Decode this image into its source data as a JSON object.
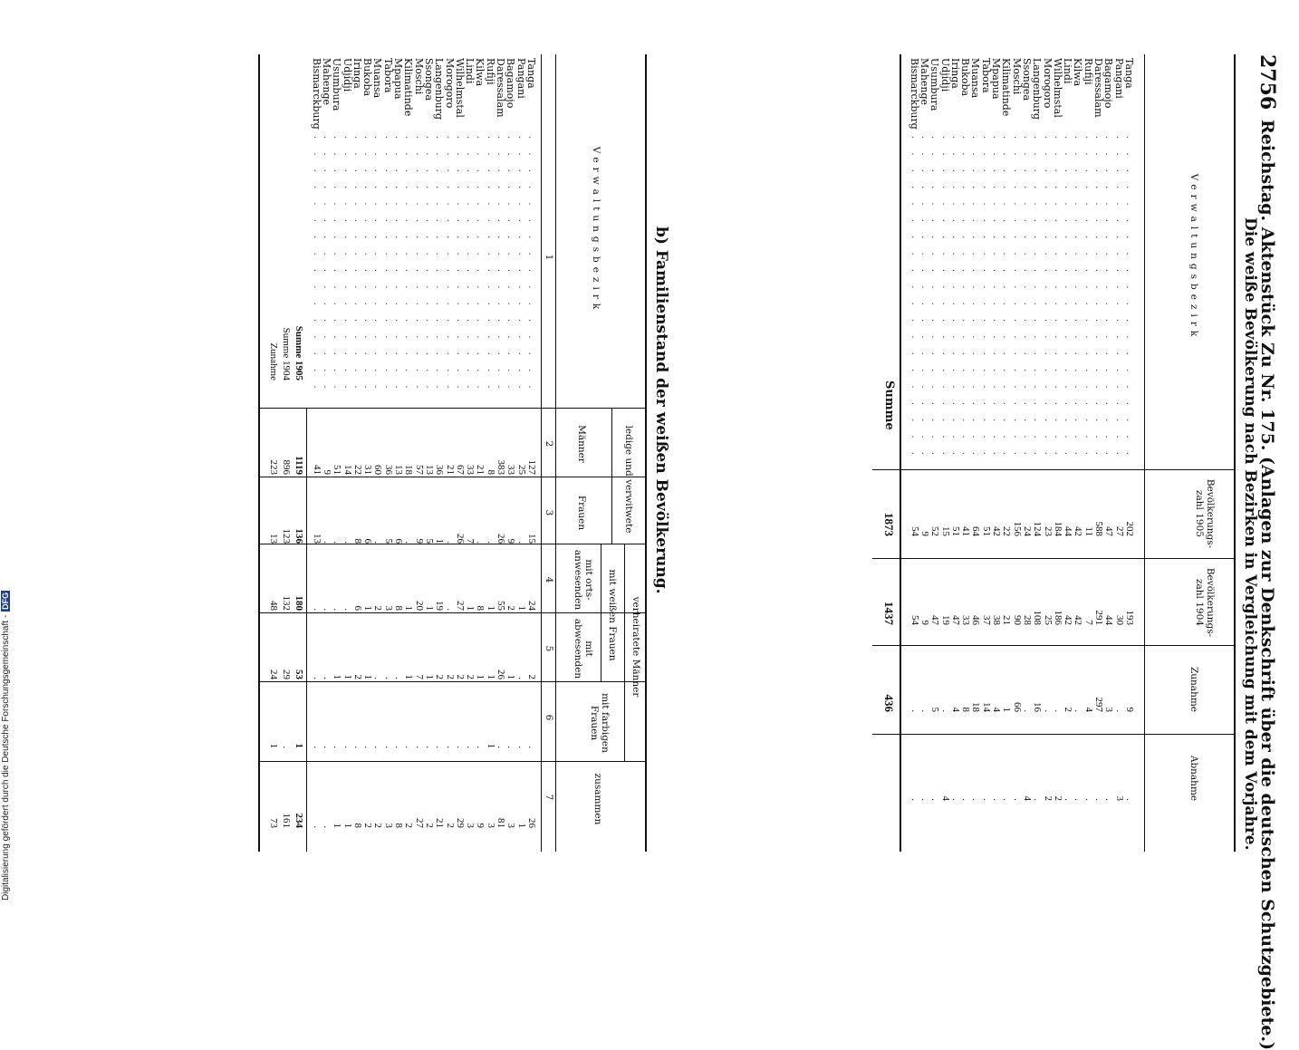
{
  "page_header": {
    "page_number": "2756",
    "running_title": "Reichstag. Aktenstück Zu Nr. 175. (Anlagen zur Denkschrift über die deutschen Schutzgebiete.)"
  },
  "table_a": {
    "title": "Die weiße Bevölkerung nach Bezirken in Vergleichung mit dem Vorjahre.",
    "columns": {
      "district": "Verwaltungsbezirk",
      "pop_1905": "Bevölkerungs- zahl 1905",
      "pop_1904": "Bevölkerungs- zahl 1904",
      "increase": "Zunahme",
      "decrease": "Abnahme"
    },
    "rows": [
      {
        "district": "Tanga",
        "pop_1905": "202",
        "pop_1904": "193",
        "increase": "9",
        "decrease": "."
      },
      {
        "district": "Pangani",
        "pop_1905": "27",
        "pop_1904": "30",
        "increase": ".",
        "decrease": "3"
      },
      {
        "district": "Bagamojo",
        "pop_1905": "47",
        "pop_1904": "44",
        "increase": "3",
        "decrease": "."
      },
      {
        "district": "Daressalam",
        "pop_1905": "588",
        "pop_1904": "291",
        "increase": "297",
        "decrease": "."
      },
      {
        "district": "Rufiji",
        "pop_1905": "11",
        "pop_1904": "7",
        "increase": "4",
        "decrease": "."
      },
      {
        "district": "Kilwa",
        "pop_1905": "42",
        "pop_1904": "42",
        "increase": ".",
        "decrease": "."
      },
      {
        "district": "Lindi",
        "pop_1905": "44",
        "pop_1904": "42",
        "increase": "2",
        "decrease": "."
      },
      {
        "district": "Wilhelmstal",
        "pop_1905": "184",
        "pop_1904": "186",
        "increase": ".",
        "decrease": "2"
      },
      {
        "district": "Morogoro",
        "pop_1905": "23",
        "pop_1904": "25",
        "increase": ".",
        "decrease": "2"
      },
      {
        "district": "Langenburg",
        "pop_1905": "124",
        "pop_1904": "108",
        "increase": "16",
        "decrease": "."
      },
      {
        "district": "Ssongea",
        "pop_1905": "24",
        "pop_1904": "28",
        "increase": ".",
        "decrease": "4"
      },
      {
        "district": "Moschi",
        "pop_1905": "156",
        "pop_1904": "90",
        "increase": "66",
        "decrease": "."
      },
      {
        "district": "Kilimatinde",
        "pop_1905": "22",
        "pop_1904": "21",
        "increase": "1",
        "decrease": "."
      },
      {
        "district": "Mpapua",
        "pop_1905": "42",
        "pop_1904": "38",
        "increase": "4",
        "decrease": "."
      },
      {
        "district": "Tabora",
        "pop_1905": "51",
        "pop_1904": "37",
        "increase": "14",
        "decrease": "."
      },
      {
        "district": "Muansa",
        "pop_1905": "64",
        "pop_1904": "46",
        "increase": "18",
        "decrease": "."
      },
      {
        "district": "Bukoba",
        "pop_1905": "41",
        "pop_1904": "33",
        "increase": "8",
        "decrease": "."
      },
      {
        "district": "Iringa",
        "pop_1905": "51",
        "pop_1904": "47",
        "increase": "4",
        "decrease": "."
      },
      {
        "district": "Udjidji",
        "pop_1905": "15",
        "pop_1904": "19",
        "increase": ".",
        "decrease": "4"
      },
      {
        "district": "Usumbura",
        "pop_1905": "52",
        "pop_1904": "47",
        "increase": "5",
        "decrease": "."
      },
      {
        "district": "Mahenge",
        "pop_1905": "9",
        "pop_1904": "9",
        "increase": ".",
        "decrease": "."
      },
      {
        "district": "Bismarckburg",
        "pop_1905": "54",
        "pop_1904": "54",
        "increase": ".",
        "decrease": "."
      }
    ],
    "total_label": "Summe",
    "total": {
      "pop_1905": "1873",
      "pop_1904": "1437",
      "increase": "436"
    }
  },
  "table_b": {
    "title": "b) Familienstand der weißen Bevölkerung.",
    "headers": {
      "district": "Verwaltungsbezirk",
      "group_single": "ledige und verwitwete",
      "men": "Männer",
      "women": "Frauen",
      "group_married": "verheiratete Männer",
      "subgroup_white_wives": "mit weißen Frauen",
      "present": "mit orts- anwesenden",
      "absent": "mit abwesenden",
      "colored_wives": "mit farbigen Frauen",
      "together": "zusammen"
    },
    "col_numbers": [
      "1",
      "2",
      "3",
      "4",
      "5",
      "6",
      "7"
    ],
    "rows": [
      {
        "district": "Tanga",
        "men": "127",
        "women": "15",
        "present": "24",
        "absent": "2",
        "colored": ".",
        "total": "26"
      },
      {
        "district": "Pangani",
        "men": "25",
        "women": ".",
        "present": "1",
        "absent": ".",
        "colored": ".",
        "total": "1"
      },
      {
        "district": "Bagamojo",
        "men": "33",
        "women": "9",
        "present": "2",
        "absent": "1",
        "colored": ".",
        "total": "3"
      },
      {
        "district": "Daressalam",
        "men": "383",
        "women": "26",
        "present": "55",
        "absent": "26",
        "colored": ".",
        "total": "81"
      },
      {
        "district": "Rufiji",
        "men": "8",
        "women": ".",
        "present": "1",
        "absent": "1",
        "colored": "1",
        "total": "3"
      },
      {
        "district": "Kilwa",
        "men": "21",
        "women": ".",
        "present": "8",
        "absent": "1",
        "colored": ".",
        "total": "9"
      },
      {
        "district": "Lindi",
        "men": "33",
        "women": "7",
        "present": "1",
        "absent": "2",
        "colored": ".",
        "total": "3"
      },
      {
        "district": "Wilhelmstal",
        "men": "67",
        "women": "26",
        "present": "27",
        "absent": "2",
        "colored": ".",
        "total": "29"
      },
      {
        "district": "Morogoro",
        "men": "21",
        "women": ".",
        "present": ".",
        "absent": "2",
        "colored": ".",
        "total": "2"
      },
      {
        "district": "Langenburg",
        "men": "36",
        "women": "1",
        "present": "19",
        "absent": "2",
        "colored": ".",
        "total": "21"
      },
      {
        "district": "Ssongea",
        "men": "13",
        "women": "5",
        "present": "1",
        "absent": "1",
        "colored": ".",
        "total": "2"
      },
      {
        "district": "Moschi",
        "men": "57",
        "women": "9",
        "present": "20",
        "absent": "7",
        "colored": ".",
        "total": "27"
      },
      {
        "district": "Kilimatinde",
        "men": "18",
        "women": ".",
        "present": "1",
        "absent": "1",
        "colored": ".",
        "total": "2"
      },
      {
        "district": "Mpapua",
        "men": "13",
        "women": "6",
        "present": "8",
        "absent": ".",
        "colored": ".",
        "total": "8"
      },
      {
        "district": "Tabora",
        "men": "36",
        "women": "5",
        "present": "3",
        "absent": ".",
        "colored": ".",
        "total": "3"
      },
      {
        "district": "Muansa",
        "men": "60",
        "women": ".",
        "present": "2",
        "absent": ".",
        "colored": ".",
        "total": "2"
      },
      {
        "district": "Bukoba",
        "men": "31",
        "women": "6",
        "present": "1",
        "absent": "1",
        "colored": ".",
        "total": "2"
      },
      {
        "district": "Iringa",
        "men": "22",
        "women": "8",
        "present": "6",
        "absent": "2",
        "colored": ".",
        "total": "8"
      },
      {
        "district": "Udjidji",
        "men": "14",
        "women": ".",
        "present": ".",
        "absent": "1",
        "colored": ".",
        "total": "1"
      },
      {
        "district": "Usumbura",
        "men": "51",
        "women": ".",
        "present": ".",
        "absent": "1",
        "colored": ".",
        "total": "1"
      },
      {
        "district": "Mahenge",
        "men": "9",
        "women": ".",
        "present": ".",
        "absent": ".",
        "colored": ".",
        "total": "."
      },
      {
        "district": "Bismarckburg",
        "men": "41",
        "women": "13",
        "present": ".",
        "absent": ".",
        "colored": ".",
        "total": "."
      }
    ],
    "summary": [
      {
        "label": "Summe 1905",
        "men": "1119",
        "women": "136",
        "present": "180",
        "absent": "53",
        "colored": "1",
        "total": "234"
      },
      {
        "label": "Summe 1904",
        "men": "896",
        "women": "123",
        "present": "132",
        "absent": "29",
        "colored": ".",
        "total": "161"
      },
      {
        "label": "Zunahme",
        "men": "223",
        "women": "13",
        "present": "48",
        "absent": "24",
        "colored": "1",
        "total": "73"
      }
    ]
  },
  "footer": {
    "text": "Digitalisierung gefördert durch die Deutsche Forschungsgemeinschaft -",
    "logo": "DFG"
  }
}
